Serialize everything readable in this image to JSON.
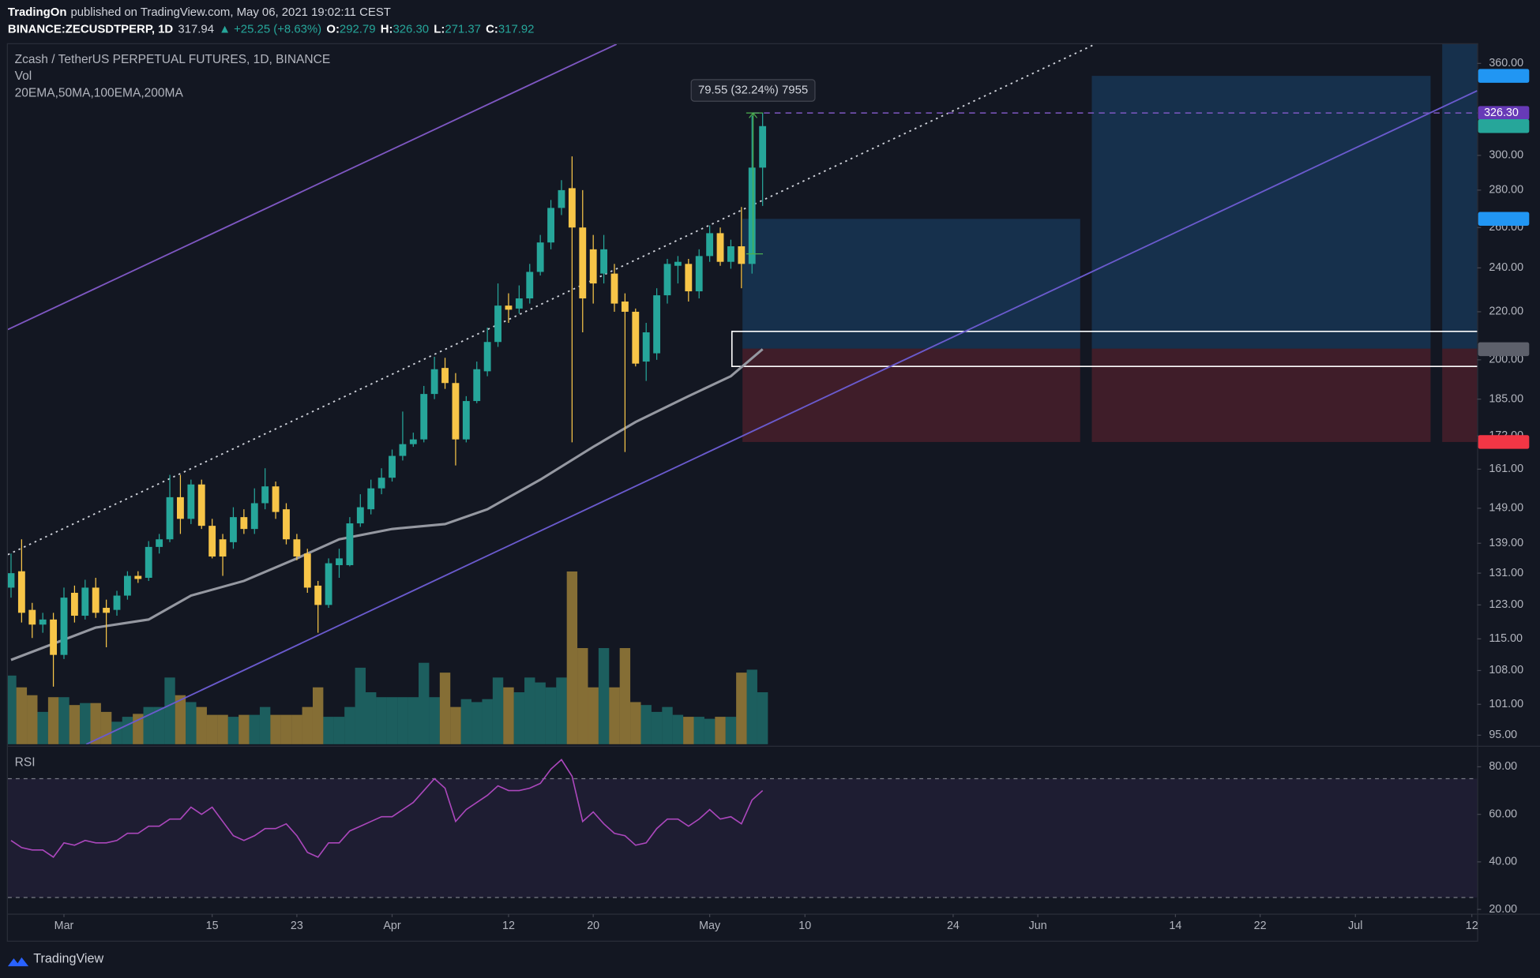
{
  "header": {
    "author": "TradingOn",
    "published": "published on TradingView.com, May 06, 2021 19:02:11 CEST",
    "symbol": "BINANCE:ZECUSDTPERP, 1D",
    "last": "317.94",
    "change": "▲ +25.25 (+8.63%)",
    "ohlc": [
      {
        "label": "O:",
        "value": "292.79"
      },
      {
        "label": "H:",
        "value": "326.30"
      },
      {
        "label": "L:",
        "value": "271.37"
      },
      {
        "label": "C:",
        "value": "317.92"
      }
    ]
  },
  "footer": "TradingView",
  "chart_data": {
    "type": "candlestick",
    "title": "Zcash / TetherUS PERPETUAL FUTURES, 1D, BINANCE",
    "volume_label": "Vol",
    "ma_label": "20EMA,50MA,100EMA,200MA",
    "log_scale": true,
    "xlim": [
      54.7,
      193.5
    ],
    "xticks": [
      {
        "value": 60,
        "label": "Mar"
      },
      {
        "value": 74,
        "label": "15"
      },
      {
        "value": 82,
        "label": "23"
      },
      {
        "value": 91,
        "label": "Apr"
      },
      {
        "value": 102,
        "label": "12"
      },
      {
        "value": 110,
        "label": "20"
      },
      {
        "value": 121,
        "label": "May"
      },
      {
        "value": 130,
        "label": "10"
      },
      {
        "value": 144,
        "label": "24"
      },
      {
        "value": 152,
        "label": "Jun"
      },
      {
        "value": 165,
        "label": "14"
      },
      {
        "value": 173,
        "label": "22"
      },
      {
        "value": 182,
        "label": "Jul"
      },
      {
        "value": 193,
        "label": "12"
      }
    ],
    "ylim": [
      93.3,
      374
    ],
    "yticks": [
      {
        "value": 95,
        "label": "95.00"
      },
      {
        "value": 101,
        "label": "101.00"
      },
      {
        "value": 108,
        "label": "108.00"
      },
      {
        "value": 115,
        "label": "115.00"
      },
      {
        "value": 123,
        "label": "123.00"
      },
      {
        "value": 131,
        "label": "131.00"
      },
      {
        "value": 139,
        "label": "139.00"
      },
      {
        "value": 149,
        "label": "149.00"
      },
      {
        "value": 161,
        "label": "161.00"
      },
      {
        "value": 172,
        "label": "172.00"
      },
      {
        "value": 185,
        "label": "185.00"
      },
      {
        "value": 200,
        "label": "200.00"
      },
      {
        "value": 220,
        "label": "220.00"
      },
      {
        "value": 240,
        "label": "240.00"
      },
      {
        "value": 260,
        "label": "260.00"
      },
      {
        "value": 280,
        "label": "280.00"
      },
      {
        "value": 300,
        "label": "300.00"
      },
      {
        "value": 360,
        "label": "360.00"
      }
    ],
    "candles": {
      "up_color": "#26a69a",
      "down_color": "#f7c548",
      "x": [
        55,
        56,
        57,
        58,
        59,
        60,
        61,
        62,
        63,
        64,
        65,
        66,
        67,
        68,
        69,
        70,
        71,
        72,
        73,
        74,
        75,
        76,
        77,
        78,
        79,
        80,
        81,
        82,
        83,
        84,
        85,
        86,
        87,
        88,
        89,
        90,
        91,
        92,
        93,
        94,
        95,
        96,
        97,
        98,
        99,
        100,
        101,
        102,
        103,
        104,
        105,
        106,
        107,
        108,
        109,
        110,
        111,
        112,
        113,
        114,
        115,
        116,
        117,
        118,
        119,
        120,
        121,
        122,
        123,
        124,
        125,
        126
      ],
      "open": [
        127.3,
        131.5,
        121.8,
        118.3,
        119.5,
        111.4,
        126.0,
        120.4,
        127.3,
        122.3,
        121.8,
        125.3,
        130.3,
        129.8,
        138.0,
        140.1,
        152.3,
        145.9,
        156.2,
        143.9,
        140.1,
        139.3,
        146.4,
        143.0,
        150.5,
        155.6,
        148.7,
        140.1,
        136.2,
        127.8,
        123.0,
        133.1,
        133.1,
        144.6,
        148.7,
        155.0,
        158.3,
        165.3,
        169.2,
        170.8,
        186.9,
        196.8,
        191.0,
        170.8,
        184.3,
        195.5,
        207.2,
        222.7,
        221.4,
        225.9,
        238.1,
        252.4,
        270.3,
        281.1,
        260.0,
        249.0,
        237.3,
        237.3,
        224.5,
        220.0,
        199.3,
        202.6,
        227.3,
        241.0,
        241.9,
        229.1,
        245.7,
        257.1,
        242.9,
        250.5,
        241.9,
        292.79
      ],
      "high": [
        136.2,
        140.1,
        123.5,
        121.1,
        121.1,
        127.3,
        127.8,
        129.3,
        129.8,
        124.3,
        126.5,
        131.5,
        131.5,
        139.6,
        141.6,
        159.2,
        159.2,
        157.7,
        157.7,
        145.9,
        141.6,
        149.3,
        148.7,
        155.0,
        161.3,
        157.1,
        150.5,
        141.6,
        137.5,
        129.0,
        134.9,
        137.5,
        146.4,
        153.2,
        157.7,
        161.3,
        167.4,
        180.5,
        173.1,
        189.9,
        201.2,
        200.8,
        194.8,
        186.1,
        199.3,
        213.2,
        232.7,
        228.2,
        231.8,
        241.9,
        256.2,
        274.6,
        285.6,
        299.4,
        280.0,
        256.2,
        256.2,
        241.9,
        228.2,
        221.4,
        215.2,
        230.5,
        244.3,
        245.7,
        244.3,
        249.0,
        261.1,
        260.0,
        253.8,
        270.8,
        324.5,
        326.3
      ],
      "low": [
        124.8,
        118.8,
        115.2,
        116.4,
        104.6,
        110.5,
        118.8,
        119.5,
        119.9,
        113.1,
        120.4,
        124.3,
        128.5,
        129.0,
        136.2,
        139.3,
        141.6,
        144.4,
        143.0,
        134.9,
        130.3,
        137.5,
        141.6,
        141.6,
        148.7,
        145.9,
        138.7,
        134.4,
        126.0,
        116.4,
        122.3,
        129.8,
        132.8,
        143.6,
        147.2,
        153.2,
        157.1,
        163.8,
        168.3,
        169.8,
        185.0,
        188.8,
        162.2,
        169.8,
        183.5,
        193.6,
        205.2,
        215.2,
        219.2,
        223.6,
        236.4,
        249.0,
        266.5,
        169.8,
        211.2,
        223.6,
        232.7,
        220.0,
        166.6,
        197.4,
        191.8,
        200.0,
        223.6,
        232.7,
        224.5,
        225.9,
        242.9,
        241.0,
        239.6,
        230.5,
        237.3,
        271.37
      ],
      "close": [
        131.0,
        121.1,
        118.3,
        119.5,
        111.4,
        124.8,
        120.4,
        127.3,
        121.1,
        121.1,
        125.3,
        130.3,
        129.5,
        138.0,
        140.1,
        152.3,
        145.9,
        156.2,
        143.9,
        135.4,
        135.4,
        146.4,
        143.0,
        150.5,
        155.6,
        147.9,
        140.1,
        135.4,
        127.3,
        123.0,
        133.6,
        134.9,
        144.6,
        149.3,
        155.0,
        158.3,
        165.3,
        169.2,
        170.8,
        186.9,
        196.3,
        191.0,
        170.8,
        184.3,
        196.3,
        207.2,
        222.7,
        220.9,
        225.9,
        238.1,
        252.4,
        270.3,
        280.0,
        260.0,
        225.9,
        232.7,
        249.0,
        223.6,
        220.0,
        198.5,
        211.2,
        227.3,
        241.9,
        242.9,
        229.1,
        245.7,
        257.1,
        242.9,
        250.5,
        241.9,
        292.8,
        317.92
      ]
    },
    "volume": {
      "values": [
        70,
        58,
        50,
        33,
        48,
        48,
        40,
        42,
        42,
        33,
        23,
        28,
        31,
        38,
        38,
        68,
        50,
        43,
        38,
        30,
        30,
        28,
        30,
        30,
        38,
        30,
        30,
        30,
        38,
        58,
        28,
        28,
        38,
        78,
        53,
        48,
        48,
        48,
        48,
        83,
        48,
        73,
        38,
        46,
        43,
        46,
        68,
        58,
        53,
        68,
        63,
        58,
        68,
        176,
        98,
        58,
        98,
        58,
        98,
        43,
        40,
        33,
        38,
        30,
        28,
        28,
        26,
        28,
        28,
        73,
        76,
        53
      ]
    },
    "ma": {
      "color": "#9598a1",
      "x": [
        55,
        63,
        68,
        72,
        77,
        82,
        86,
        91,
        96,
        100,
        105,
        110,
        114,
        119,
        123,
        126
      ],
      "values": [
        110.3,
        117.6,
        119.5,
        125.3,
        129.0,
        134.9,
        140.1,
        143.0,
        144.4,
        148.7,
        157.7,
        168.3,
        176.8,
        186.1,
        193.6,
        204.26
      ]
    },
    "lines": [
      {
        "color": "#7e57c2",
        "style": "solid",
        "x": [
          54.7,
          112.2
        ],
        "values": [
          212.4,
          374
        ]
      },
      {
        "color": "#6a5acd",
        "style": "solid",
        "x": [
          62.1,
          193.5
        ],
        "values": [
          93.3,
          341
        ]
      },
      {
        "color": "#d1d4dc",
        "style": "dotted",
        "x": [
          54.7,
          157.4
        ],
        "values": [
          135.9,
          374
        ]
      }
    ],
    "positions": [
      {
        "x0": 124.1,
        "x1": 156,
        "entry": 204.5,
        "target": 264.51,
        "stop": 169.92
      },
      {
        "x0": 157.1,
        "x1": 189.1,
        "entry": 204.5,
        "target": 351.21,
        "stop": 169.92
      },
      {
        "x0": 190.2,
        "x1": 193.5,
        "entry": 204.5,
        "target": null,
        "stop": 169.92
      }
    ],
    "zone": {
      "x0": 123.1,
      "high": 211.6,
      "low": 197.4
    },
    "measure": {
      "label": "79.55 (32.24%) 7955",
      "x": 125.1,
      "from": 246.75,
      "to": 326.3,
      "color": "#4caf50",
      "line_color": "#7e57c2"
    },
    "price_labels": [
      {
        "value": 351.21,
        "color": "#2196f3"
      },
      {
        "value": 326.3,
        "label": "326.30",
        "color": "#673ab7"
      },
      {
        "value": 317.92,
        "color": "#26a69a"
      },
      {
        "value": 264.51,
        "color": "#2196f3"
      },
      {
        "value": 204.26,
        "color": "#5d606b"
      },
      {
        "value": 169.92,
        "color": "#f23645"
      }
    ],
    "rsi": {
      "title": "RSI",
      "color": "#ab47bc",
      "ylim": [
        18.4,
        87.4
      ],
      "bands": [
        75,
        25
      ],
      "yticks": [
        {
          "value": 80,
          "label": "80.00"
        },
        {
          "value": 60,
          "label": "60.00"
        },
        {
          "value": 40,
          "label": "40.00"
        },
        {
          "value": 20,
          "label": "20.00"
        }
      ],
      "values": [
        49,
        46,
        45,
        45,
        42,
        48,
        47,
        49,
        48,
        48,
        49,
        52,
        52,
        55,
        55,
        58,
        58,
        63,
        60,
        63,
        57,
        51,
        49,
        51,
        54,
        54,
        56,
        51,
        44,
        42,
        48,
        48,
        53,
        55,
        57,
        59,
        59,
        62,
        65,
        70,
        75,
        71,
        57,
        62,
        65,
        68,
        72,
        70,
        70,
        71,
        73,
        79,
        83,
        76,
        57,
        61,
        56,
        52,
        51,
        47,
        48,
        54,
        58,
        58,
        55,
        58,
        62,
        58,
        59,
        56,
        66,
        70
      ]
    }
  }
}
